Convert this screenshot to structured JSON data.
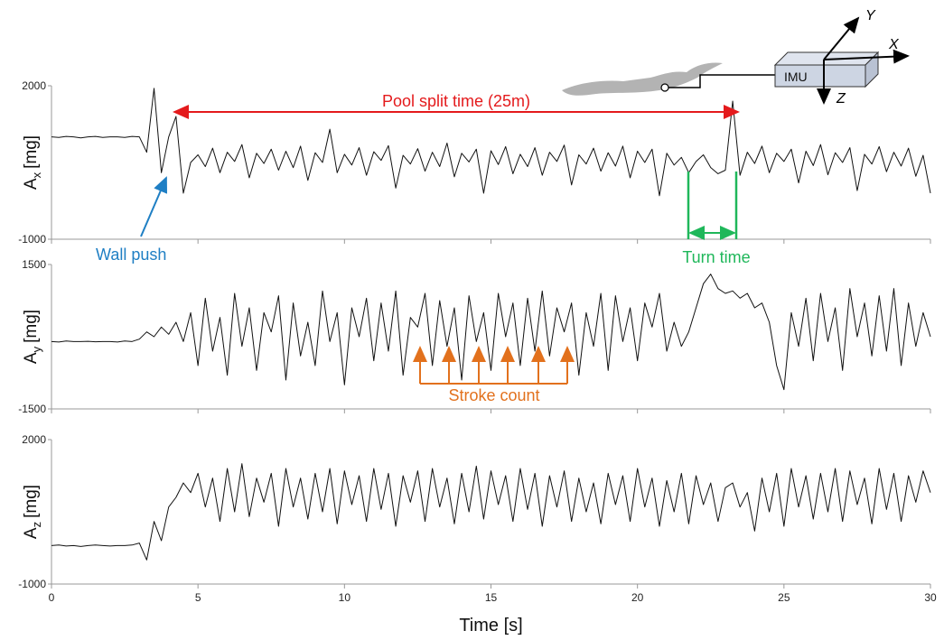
{
  "chart_data": [
    {
      "type": "line",
      "ylabel": {
        "symbol": "A",
        "subscript": "x",
        "unit": "[mg]"
      },
      "annotations": {
        "split": "Pool split time (25m)",
        "wall": "Wall push",
        "turn": "Turn time",
        "imu": "IMU",
        "axes": [
          "X",
          "Y",
          "Z"
        ]
      },
      "x": [
        0,
        0.25,
        0.5,
        0.75,
        1,
        1.25,
        1.5,
        1.75,
        2,
        2.25,
        2.5,
        2.75,
        3,
        3.25,
        3.5,
        3.75,
        4,
        4.25,
        4.5,
        4.75,
        5,
        5.25,
        5.5,
        5.75,
        6,
        6.25,
        6.5,
        6.75,
        7,
        7.25,
        7.5,
        7.75,
        8,
        8.25,
        8.5,
        8.75,
        9,
        9.25,
        9.5,
        9.75,
        10,
        10.25,
        10.5,
        10.75,
        11,
        11.25,
        11.5,
        11.75,
        12,
        12.25,
        12.5,
        12.75,
        13,
        13.25,
        13.5,
        13.75,
        14,
        14.25,
        14.5,
        14.75,
        15,
        15.25,
        15.5,
        15.75,
        16,
        16.25,
        16.5,
        16.75,
        17,
        17.25,
        17.5,
        17.75,
        18,
        18.25,
        18.5,
        18.75,
        19,
        19.25,
        19.5,
        19.75,
        20,
        20.25,
        20.5,
        20.75,
        21,
        21.25,
        21.5,
        21.75,
        22,
        22.25,
        22.5,
        22.75,
        23,
        23.25,
        23.5,
        23.75,
        24,
        24.25,
        24.5,
        24.75,
        25,
        25.25,
        25.5,
        25.75,
        26,
        26.25,
        26.5,
        26.75,
        27,
        27.25,
        27.5,
        27.75,
        28,
        28.25,
        28.5,
        28.75,
        29,
        29.25,
        29.5,
        29.75,
        30
      ],
      "series": [
        {
          "color": "#111111",
          "values": [
            1000,
            990,
            1010,
            1000,
            980,
            1000,
            1010,
            990,
            1000,
            1000,
            990,
            1010,
            1000,
            700,
            1950,
            300,
            1000,
            1400,
            -100,
            500,
            650,
            420,
            780,
            300,
            700,
            520,
            850,
            200,
            680,
            480,
            760,
            350,
            720,
            400,
            820,
            150,
            690,
            500,
            1150,
            300,
            660,
            450,
            790,
            250,
            710,
            540,
            830,
            0,
            640,
            470,
            770,
            330,
            700,
            420,
            880,
            220,
            680,
            510,
            760,
            -100,
            730,
            460,
            810,
            280,
            660,
            420,
            790,
            250,
            700,
            520,
            840,
            60,
            650,
            470,
            780,
            330,
            690,
            430,
            820,
            200,
            720,
            500,
            760,
            -150,
            680,
            450,
            600,
            300,
            520,
            650,
            400,
            280,
            350,
            1700,
            250,
            700,
            480,
            820,
            300,
            680,
            520,
            760,
            100,
            720,
            440,
            850,
            260,
            690,
            500,
            790,
            -50,
            660,
            470,
            810,
            320,
            700,
            430,
            780,
            230,
            640,
            -100
          ]
        }
      ],
      "xlim": [
        0,
        30
      ],
      "ylim": [
        -1000,
        2000
      ],
      "yticks": [
        -1000,
        2000
      ]
    },
    {
      "type": "line",
      "ylabel": {
        "symbol": "A",
        "subscript": "y",
        "unit": "[mg]"
      },
      "annotations": {
        "stroke": "Stroke count"
      },
      "x": [
        0,
        0.25,
        0.5,
        0.75,
        1,
        1.25,
        1.5,
        1.75,
        2,
        2.25,
        2.5,
        2.75,
        3,
        3.25,
        3.5,
        3.75,
        4,
        4.25,
        4.5,
        4.75,
        5,
        5.25,
        5.5,
        5.75,
        6,
        6.25,
        6.5,
        6.75,
        7,
        7.25,
        7.5,
        7.75,
        8,
        8.25,
        8.5,
        8.75,
        9,
        9.25,
        9.5,
        9.75,
        10,
        10.25,
        10.5,
        10.75,
        11,
        11.25,
        11.5,
        11.75,
        12,
        12.25,
        12.5,
        12.75,
        13,
        13.25,
        13.5,
        13.75,
        14,
        14.25,
        14.5,
        14.75,
        15,
        15.25,
        15.5,
        15.75,
        16,
        16.25,
        16.5,
        16.75,
        17,
        17.25,
        17.5,
        17.75,
        18,
        18.25,
        18.5,
        18.75,
        19,
        19.25,
        19.5,
        19.75,
        20,
        20.25,
        20.5,
        20.75,
        21,
        21.25,
        21.5,
        21.75,
        22,
        22.25,
        22.5,
        22.75,
        23,
        23.25,
        23.5,
        23.75,
        24,
        24.25,
        24.5,
        24.75,
        25,
        25.25,
        25.5,
        25.75,
        26,
        26.25,
        26.5,
        26.75,
        27,
        27.25,
        27.5,
        27.75,
        28,
        28.25,
        28.5,
        28.75,
        29,
        29.25,
        29.5,
        29.75,
        30
      ],
      "series": [
        {
          "color": "#111111",
          "values": [
            -100,
            -110,
            -90,
            -100,
            -100,
            -95,
            -105,
            -100,
            -100,
            -110,
            -90,
            -100,
            -50,
            100,
            0,
            200,
            50,
            300,
            -100,
            500,
            -600,
            800,
            -300,
            400,
            -800,
            900,
            -200,
            600,
            -700,
            500,
            100,
            850,
            -900,
            700,
            -400,
            300,
            -600,
            950,
            -100,
            500,
            -1000,
            600,
            0,
            800,
            -500,
            700,
            -300,
            950,
            -800,
            400,
            200,
            900,
            -600,
            750,
            -200,
            600,
            -900,
            850,
            -100,
            500,
            -700,
            900,
            0,
            700,
            -600,
            800,
            -300,
            950,
            -400,
            600,
            100,
            700,
            -800,
            500,
            -200,
            900,
            -700,
            850,
            -100,
            600,
            -500,
            700,
            200,
            900,
            -300,
            300,
            -200,
            100,
            600,
            1100,
            1300,
            1000,
            900,
            950,
            800,
            900,
            600,
            700,
            300,
            -600,
            -1100,
            500,
            -200,
            800,
            -500,
            900,
            -100,
            600,
            -700,
            1000,
            0,
            700,
            -400,
            850,
            -300,
            1000,
            -600,
            700,
            -200,
            500,
            0
          ]
        }
      ],
      "xlim": [
        0,
        30
      ],
      "ylim": [
        -1500,
        1500
      ],
      "yticks": [
        -1500,
        1500
      ]
    },
    {
      "type": "line",
      "ylabel": {
        "symbol": "A",
        "subscript": "z",
        "unit": "[mg]"
      },
      "xlabel": "Time [s]",
      "x": [
        0,
        0.25,
        0.5,
        0.75,
        1,
        1.25,
        1.5,
        1.75,
        2,
        2.25,
        2.5,
        2.75,
        3,
        3.25,
        3.5,
        3.75,
        4,
        4.25,
        4.5,
        4.75,
        5,
        5.25,
        5.5,
        5.75,
        6,
        6.25,
        6.5,
        6.75,
        7,
        7.25,
        7.5,
        7.75,
        8,
        8.25,
        8.5,
        8.75,
        9,
        9.25,
        9.5,
        9.75,
        10,
        10.25,
        10.5,
        10.75,
        11,
        11.25,
        11.5,
        11.75,
        12,
        12.25,
        12.5,
        12.75,
        13,
        13.25,
        13.5,
        13.75,
        14,
        14.25,
        14.5,
        14.75,
        15,
        15.25,
        15.5,
        15.75,
        16,
        16.25,
        16.5,
        16.75,
        17,
        17.25,
        17.5,
        17.75,
        18,
        18.25,
        18.5,
        18.75,
        19,
        19.25,
        19.5,
        19.75,
        20,
        20.25,
        20.5,
        20.75,
        21,
        21.25,
        21.5,
        21.75,
        22,
        22.25,
        22.5,
        22.75,
        23,
        23.25,
        23.5,
        23.75,
        24,
        24.25,
        24.5,
        24.75,
        25,
        25.25,
        25.5,
        25.75,
        26,
        26.25,
        26.5,
        26.75,
        27,
        27.25,
        27.5,
        27.75,
        28,
        28.25,
        28.5,
        28.75,
        29,
        29.25,
        29.5,
        29.75,
        30
      ],
      "series": [
        {
          "color": "#111111",
          "values": [
            -200,
            -190,
            -210,
            -200,
            -220,
            -200,
            -190,
            -200,
            -210,
            -200,
            -200,
            -190,
            -150,
            -500,
            300,
            -100,
            600,
            800,
            1100,
            900,
            1300,
            600,
            1200,
            300,
            1400,
            500,
            1500,
            400,
            1200,
            700,
            1300,
            200,
            1400,
            600,
            1200,
            350,
            1300,
            500,
            1400,
            250,
            1350,
            650,
            1250,
            300,
            1400,
            550,
            1300,
            200,
            1250,
            700,
            1350,
            300,
            1400,
            600,
            1200,
            250,
            1300,
            500,
            1450,
            350,
            1350,
            650,
            1250,
            300,
            1400,
            550,
            1300,
            200,
            1250,
            600,
            1350,
            300,
            1200,
            500,
            1100,
            250,
            1300,
            650,
            1250,
            300,
            1400,
            600,
            1200,
            200,
            1150,
            500,
            1300,
            250,
            1250,
            650,
            1100,
            300,
            1000,
            1100,
            600,
            900,
            100,
            1200,
            500,
            1300,
            200,
            1400,
            600,
            1250,
            350,
            1300,
            500,
            1400,
            300,
            1350,
            650,
            1200,
            250,
            1400,
            550,
            1300,
            300,
            1250,
            700,
            1350,
            900
          ]
        }
      ],
      "xlim": [
        0,
        30
      ],
      "ylim": [
        -1000,
        2000
      ],
      "yticks": [
        -1000,
        2000
      ],
      "xticks": [
        0,
        5,
        10,
        15,
        20,
        25,
        30
      ]
    }
  ]
}
